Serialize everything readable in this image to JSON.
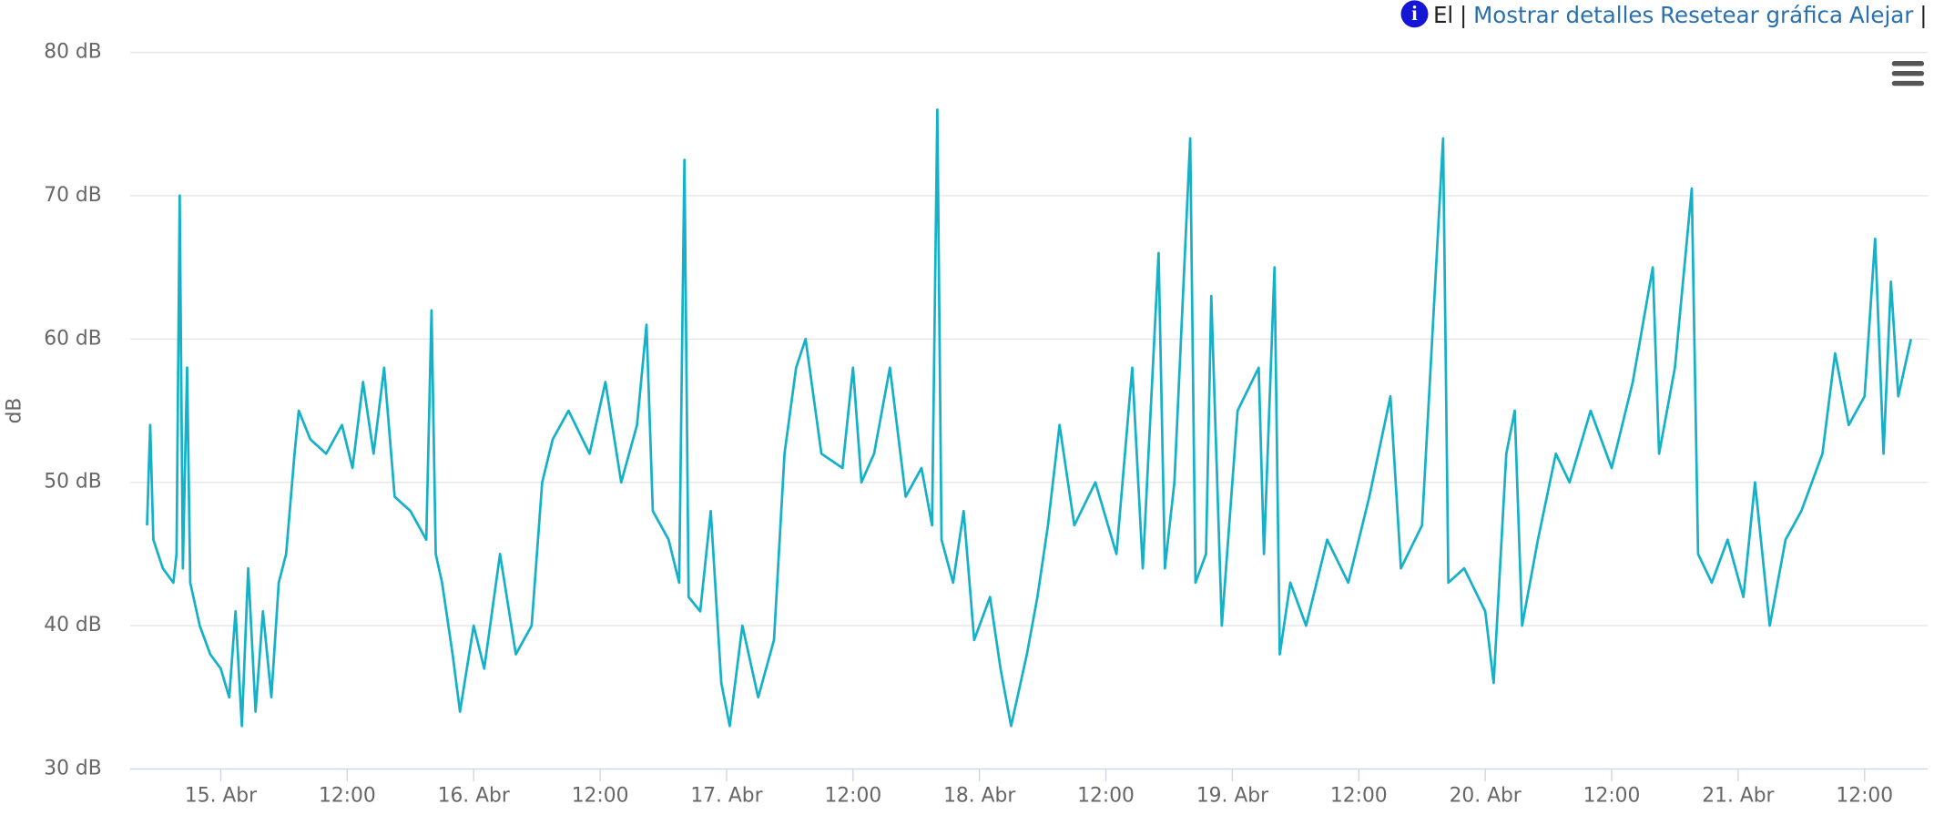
{
  "toolbar": {
    "info_text": "El",
    "separator": "|",
    "links": [
      "Mostrar detalles",
      "Resetear gráfica",
      "Alejar"
    ],
    "trailing": "| |"
  },
  "chart_data": {
    "type": "line",
    "y_label": "dB",
    "x": [
      -7,
      -6.7,
      -6.4,
      -5.5,
      -4.5,
      -4.2,
      -3.9,
      -3.6,
      -3.2,
      -2.9,
      -2,
      -1,
      0,
      0.8,
      1.4,
      2,
      2.6,
      3.3,
      4,
      4.8,
      5.5,
      6.2,
      7,
      7.4,
      8.5,
      10,
      11.5,
      12.5,
      13.5,
      14.5,
      15.5,
      16.5,
      18,
      19.5,
      20,
      20.4,
      21,
      22,
      22.7,
      24,
      25,
      26.5,
      28,
      29.5,
      30.5,
      31.5,
      33,
      35,
      36.5,
      38,
      39.5,
      40.4,
      41,
      42.5,
      43.5,
      44,
      44.4,
      45.5,
      46.5,
      47.5,
      48.3,
      49.5,
      51,
      52.5,
      53.5,
      54.6,
      55.5,
      57,
      59,
      60,
      60.8,
      62,
      63.5,
      65,
      66.5,
      67.5,
      68,
      68.4,
      69.5,
      70.5,
      71.5,
      73,
      74,
      75,
      76.5,
      77.5,
      78.5,
      79.6,
      81,
      83,
      85,
      86.5,
      87.5,
      89,
      89.6,
      90.5,
      92,
      92.5,
      93.5,
      94,
      95,
      96.5,
      98.5,
      99,
      100,
      100.5,
      101.5,
      103,
      105,
      107,
      109,
      111,
      112,
      114,
      116,
      116.5,
      118,
      120,
      120.8,
      122,
      122.8,
      123.5,
      125,
      126.7,
      128,
      130,
      132,
      134,
      135.9,
      136.5,
      138,
      139.6,
      140.2,
      141.5,
      143,
      144.5,
      145.6,
      147,
      148.5,
      150,
      152,
      153.2,
      154.5,
      156,
      157,
      157.8,
      158.5,
      159.2,
      160.4
    ],
    "series": [
      {
        "name": "dB",
        "color": "#14b1c9",
        "values": [
          47,
          54,
          46,
          44,
          43,
          45,
          70,
          44,
          58,
          43,
          40,
          38,
          37,
          35,
          41,
          33,
          44,
          34,
          41,
          35,
          43,
          45,
          52,
          55,
          53,
          52,
          54,
          51,
          57,
          52,
          58,
          49,
          48,
          46,
          62,
          45,
          43,
          38,
          34,
          40,
          37,
          45,
          38,
          40,
          50,
          53,
          55,
          52,
          57,
          50,
          54,
          61,
          48,
          46,
          43,
          72.5,
          42,
          41,
          48,
          36,
          33,
          40,
          35,
          39,
          52,
          58,
          60,
          52,
          51,
          58,
          50,
          52,
          58,
          49,
          51,
          47,
          76,
          46,
          43,
          48,
          39,
          42,
          37,
          33,
          38,
          42,
          47,
          54,
          47,
          50,
          45,
          58,
          44,
          66,
          44,
          50,
          74,
          43,
          45,
          63,
          40,
          55,
          58,
          45,
          65,
          38,
          43,
          40,
          46,
          43,
          49,
          56,
          44,
          47,
          74,
          43,
          44,
          41,
          36,
          52,
          55,
          40,
          46,
          52,
          50,
          55,
          51,
          57,
          65,
          52,
          58,
          70.5,
          45,
          43,
          46,
          42,
          50,
          40,
          46,
          48,
          52,
          59,
          54,
          56,
          67,
          52,
          64,
          56,
          60
        ]
      }
    ],
    "xlim": [
      -8.6,
      162
    ],
    "xticks": [
      {
        "value": 0,
        "label": "15. Abr"
      },
      {
        "value": 12,
        "label": "12:00"
      },
      {
        "value": 24,
        "label": "16. Abr"
      },
      {
        "value": 36,
        "label": "12:00"
      },
      {
        "value": 48,
        "label": "17. Abr"
      },
      {
        "value": 60,
        "label": "12:00"
      },
      {
        "value": 72,
        "label": "18. Abr"
      },
      {
        "value": 84,
        "label": "12:00"
      },
      {
        "value": 96,
        "label": "19. Abr"
      },
      {
        "value": 108,
        "label": "12:00"
      },
      {
        "value": 120,
        "label": "20. Abr"
      },
      {
        "value": 132,
        "label": "12:00"
      },
      {
        "value": 144,
        "label": "21. Abr"
      },
      {
        "value": 156,
        "label": "12:00"
      }
    ],
    "ylim": [
      30,
      80
    ],
    "yticks": [
      {
        "value": 30,
        "label": "30 dB"
      },
      {
        "value": 40,
        "label": "40 dB"
      },
      {
        "value": 50,
        "label": "50 dB"
      },
      {
        "value": 60,
        "label": "60 dB"
      },
      {
        "value": 70,
        "label": "70 dB"
      },
      {
        "value": 80,
        "label": "80 dB"
      }
    ],
    "grid": true
  }
}
